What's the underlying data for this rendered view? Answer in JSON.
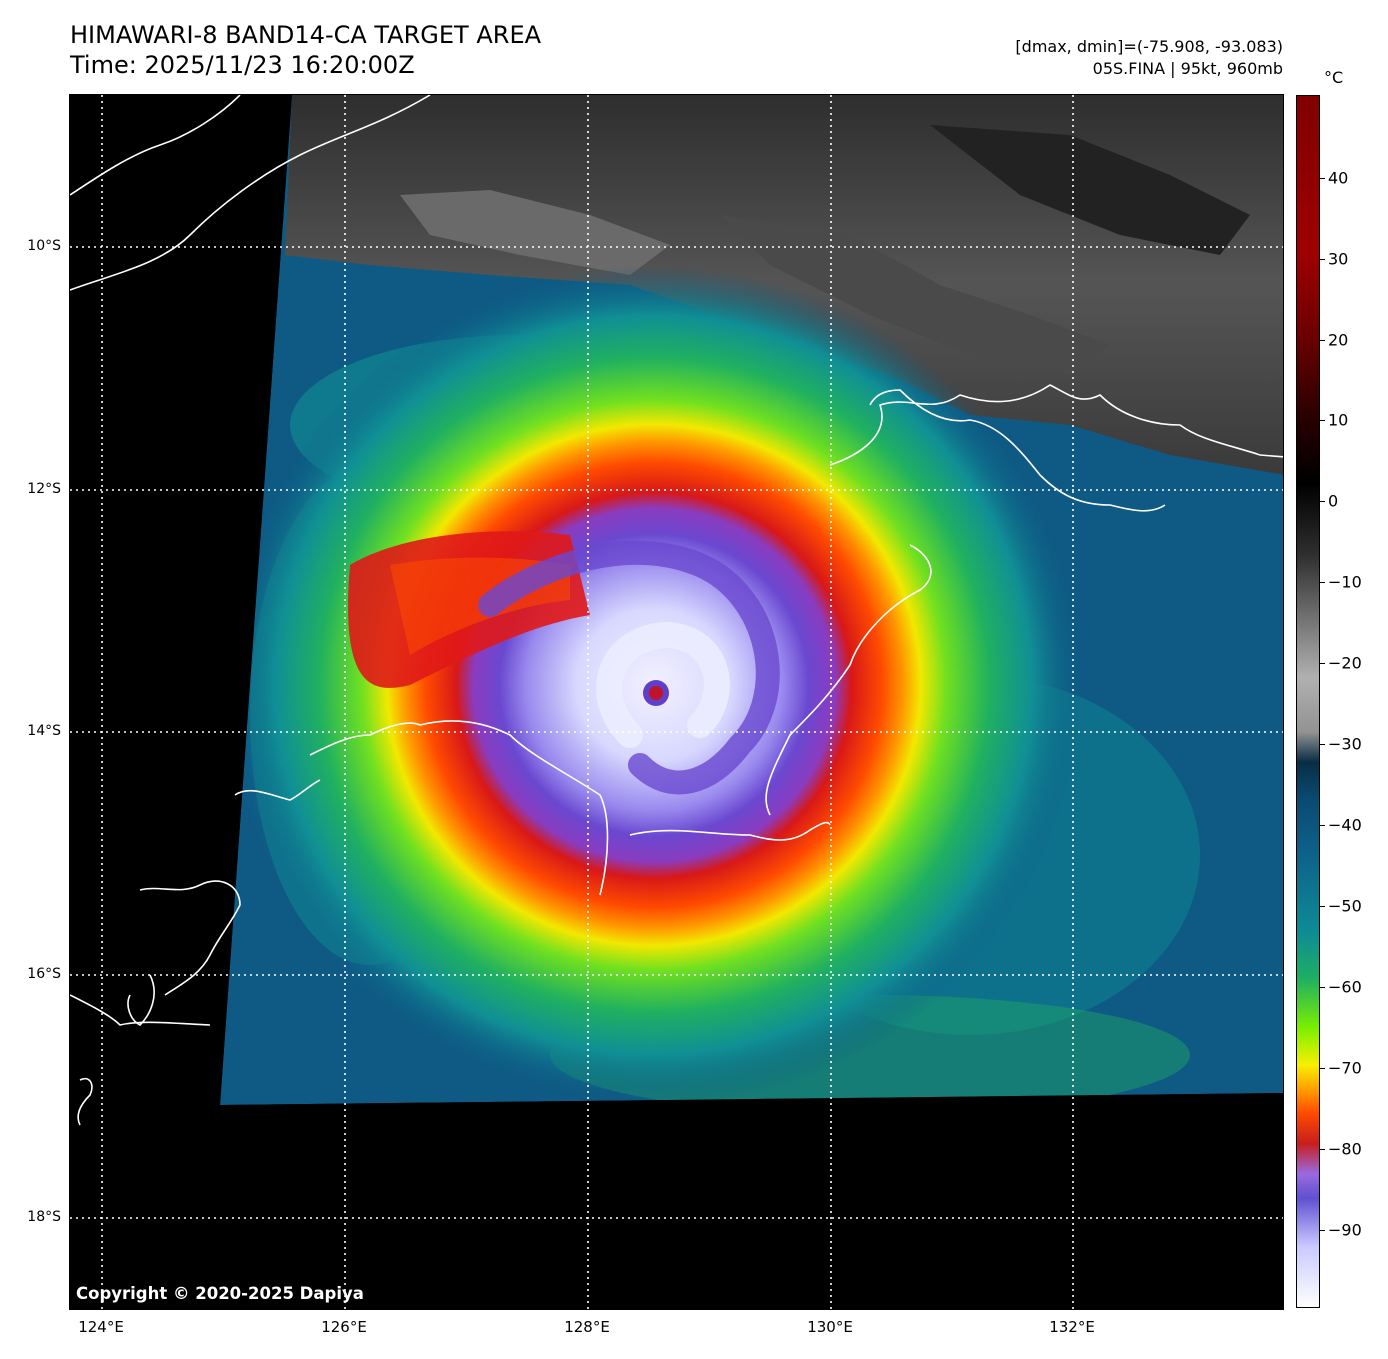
{
  "header": {
    "title_line1": "HIMAWARI-8 BAND14-CA TARGET AREA",
    "title_line2": "Time: 2025/11/23 16:20:00Z",
    "info_line1": "[dmax, dmin]=(-75.908, -93.083)",
    "info_line2": "05S.FINA | 95kt, 960mb"
  },
  "map": {
    "lat_labels": [
      "10°S",
      "12°S",
      "14°S",
      "16°S",
      "18°S"
    ],
    "lon_labels": [
      "124°E",
      "126°E",
      "128°E",
      "130°E",
      "132°E"
    ],
    "gridlines": "dotted-white",
    "storm_center_lat": 13.6,
    "storm_center_lon": 128.6,
    "copyright": "Copyright © 2020-2025 Dapiya"
  },
  "colorbar": {
    "unit": "°C",
    "ticks": [
      "40",
      "30",
      "20",
      "10",
      "0",
      "−10",
      "−20",
      "−30",
      "−40",
      "−50",
      "−60",
      "−70",
      "−80",
      "−90"
    ]
  },
  "colors": {
    "eye": "#c0142a",
    "cold_core": "#d8d8ff",
    "eyewall": "#7050d8",
    "ring_red": "#e01818",
    "ring_orange": "#ff6a00",
    "ring_yellow": "#f0e800",
    "ring_green": "#60e020",
    "ocean_teal": "#108f95",
    "ocean_blue": "#0e5a85",
    "land_gray": "#555555",
    "coastline": "#ffffff"
  }
}
